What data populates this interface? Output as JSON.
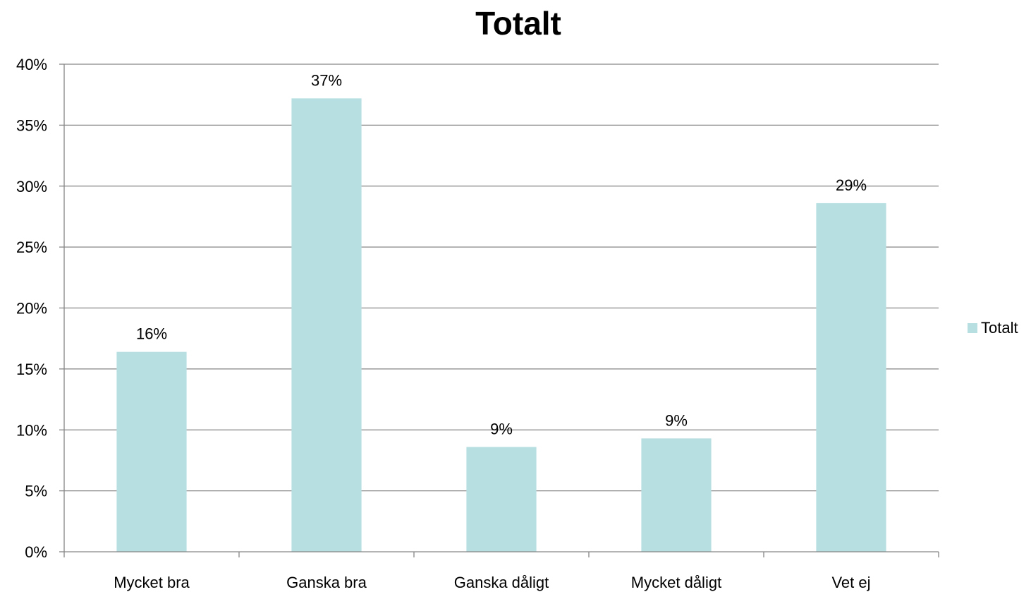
{
  "chart_data": {
    "type": "bar",
    "title": "Totalt",
    "categories": [
      "Mycket bra",
      "Ganska bra",
      "Ganska dåligt",
      "Mycket dåligt",
      "Vet ej"
    ],
    "series": [
      {
        "name": "Totalt",
        "values": [
          16.4,
          37.2,
          8.6,
          9.3,
          28.6
        ]
      }
    ],
    "data_labels": [
      "16%",
      "37%",
      "9%",
      "9%",
      "29%"
    ],
    "ylim": [
      0,
      40
    ],
    "yticks": [
      0,
      5,
      10,
      15,
      20,
      25,
      30,
      35,
      40
    ],
    "ytick_labels": [
      "0%",
      "5%",
      "10%",
      "15%",
      "20%",
      "25%",
      "30%",
      "35%",
      "40%"
    ],
    "xlabel": "",
    "ylabel": "",
    "grid": true,
    "legend": "right",
    "bar_color": "#b7dfe2",
    "gridline_color": "#868686"
  }
}
